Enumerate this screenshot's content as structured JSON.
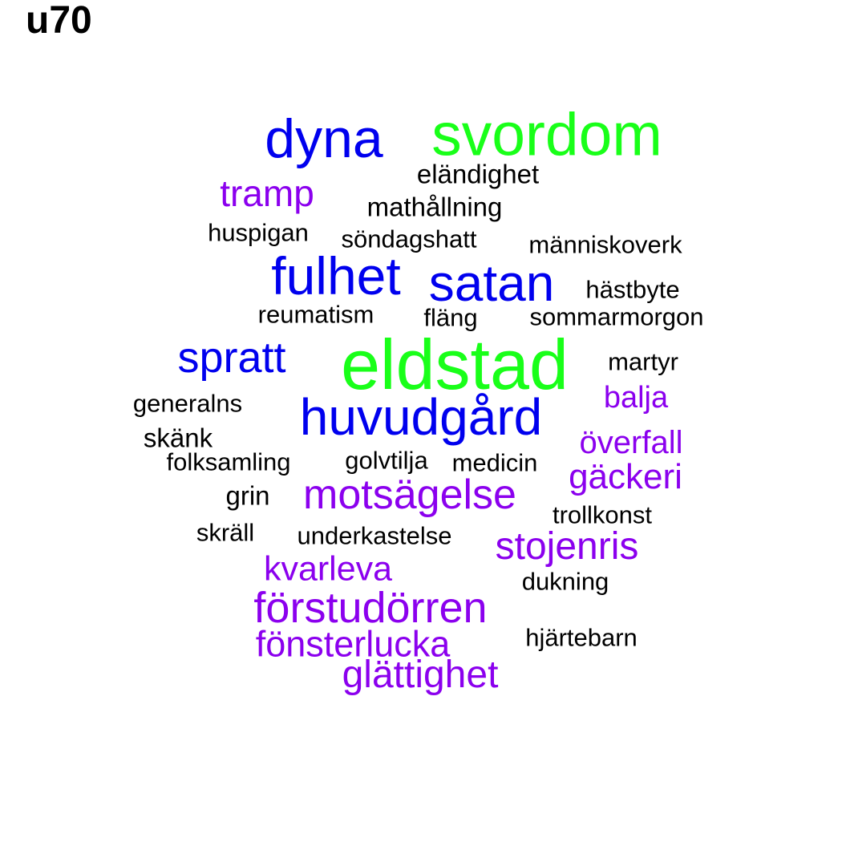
{
  "title": "u70",
  "colors": {
    "green": "#19ff19",
    "blue": "#0000ee",
    "purple": "#8b00ee",
    "black": "#000000"
  },
  "words": [
    "eldstad",
    "svordom",
    "dyna",
    "satan",
    "fulhet",
    "huvudgård",
    "spratt",
    "motsägelse",
    "förstudörren",
    "stojenris",
    "glättighet",
    "fönsterlucka",
    "kvarleva",
    "tramp",
    "gäckeri",
    "överfall",
    "balja",
    "eländighet",
    "mathållning",
    "huspigan",
    "söndagshatt",
    "människoverk",
    "hästbyte",
    "reumatism",
    "fläng",
    "sommarmorgon",
    "martyr",
    "generalns",
    "skänk",
    "folksamling",
    "golvtilja",
    "medicin",
    "grin",
    "trollkonst",
    "skräll",
    "underkastelse",
    "dukning",
    "hjärtebarn"
  ]
}
